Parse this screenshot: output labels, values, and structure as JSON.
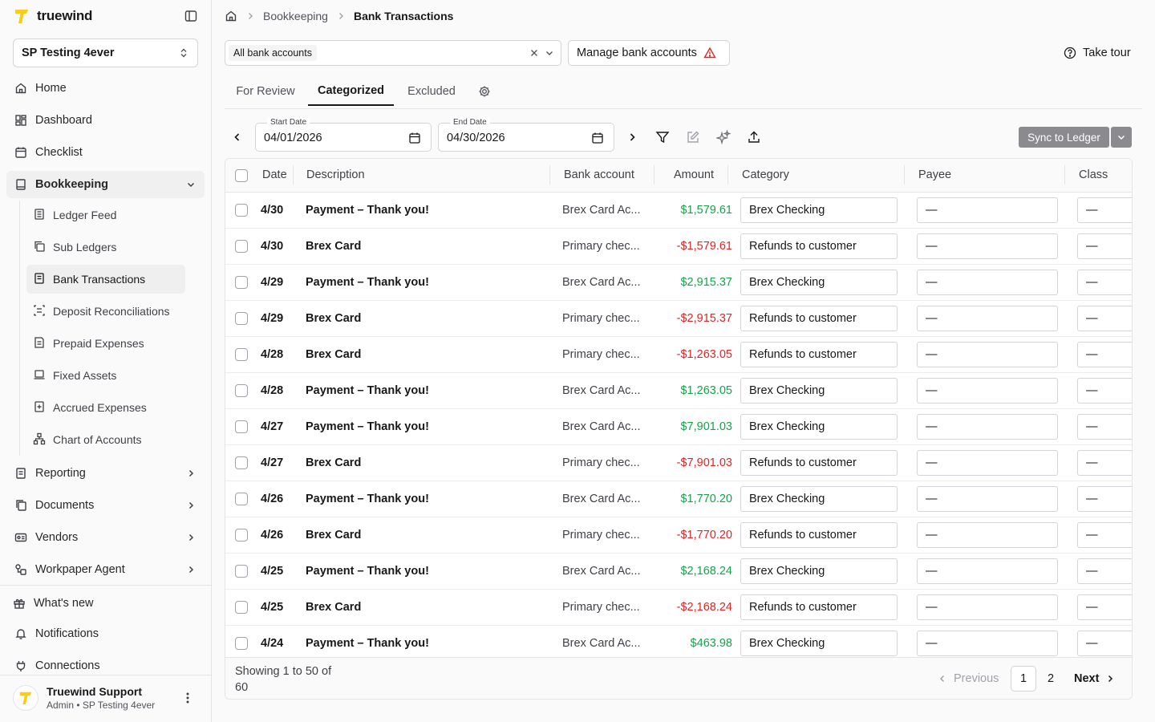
{
  "sidebar": {
    "brand": "truewind",
    "org": "SP Testing 4ever",
    "nav": {
      "home": "Home",
      "dashboard": "Dashboard",
      "checklist": "Checklist",
      "bookkeeping": "Bookkeeping",
      "reporting": "Reporting",
      "documents": "Documents",
      "vendors": "Vendors",
      "workpaper_agent": "Workpaper Agent",
      "whats_new": "What's new",
      "notifications": "Notifications",
      "connections": "Connections"
    },
    "sub": {
      "ledger_feed": "Ledger Feed",
      "sub_ledgers": "Sub Ledgers",
      "bank_transactions": "Bank Transactions",
      "deposit_reconciliations": "Deposit Reconciliations",
      "prepaid_expenses": "Prepaid Expenses",
      "fixed_assets": "Fixed Assets",
      "accrued_expenses": "Accrued Expenses",
      "chart_of_accounts": "Chart of Accounts"
    },
    "user": {
      "name": "Truewind Support",
      "role": "Admin • SP Testing 4ever"
    }
  },
  "breadcrumb": {
    "section": "Bookkeeping",
    "current": "Bank Transactions"
  },
  "toolbar": {
    "accounts_chip": "All bank accounts",
    "manage_label": "Manage bank accounts",
    "tour_label": "Take tour",
    "start_date_label": "Start Date",
    "start_date": "04/01/2026",
    "end_date_label": "End Date",
    "end_date": "04/30/2026",
    "sync_label": "Sync to Ledger"
  },
  "tabs": {
    "for_review": "For Review",
    "categorized": "Categorized",
    "excluded": "Excluded"
  },
  "table": {
    "headers": {
      "date": "Date",
      "description": "Description",
      "bank_account": "Bank account",
      "amount": "Amount",
      "category": "Category",
      "payee": "Payee",
      "class": "Class"
    },
    "rows": [
      {
        "date": "4/30",
        "description": "Payment – Thank you!",
        "bank": "Brex Card Ac...",
        "amount": "$1,579.61",
        "sign": "pos",
        "category": "Brex Checking",
        "payee": "—",
        "class": "—"
      },
      {
        "date": "4/30",
        "description": "Brex Card",
        "bank": "Primary chec...",
        "amount": "-$1,579.61",
        "sign": "neg",
        "category": "Refunds to customer",
        "payee": "—",
        "class": "—"
      },
      {
        "date": "4/29",
        "description": "Payment – Thank you!",
        "bank": "Brex Card Ac...",
        "amount": "$2,915.37",
        "sign": "pos",
        "category": "Brex Checking",
        "payee": "—",
        "class": "—"
      },
      {
        "date": "4/29",
        "description": "Brex Card",
        "bank": "Primary chec...",
        "amount": "-$2,915.37",
        "sign": "neg",
        "category": "Refunds to customer",
        "payee": "—",
        "class": "—"
      },
      {
        "date": "4/28",
        "description": "Brex Card",
        "bank": "Primary chec...",
        "amount": "-$1,263.05",
        "sign": "neg",
        "category": "Refunds to customer",
        "payee": "—",
        "class": "—"
      },
      {
        "date": "4/28",
        "description": "Payment – Thank you!",
        "bank": "Brex Card Ac...",
        "amount": "$1,263.05",
        "sign": "pos",
        "category": "Brex Checking",
        "payee": "—",
        "class": "—"
      },
      {
        "date": "4/27",
        "description": "Payment – Thank you!",
        "bank": "Brex Card Ac...",
        "amount": "$7,901.03",
        "sign": "pos",
        "category": "Brex Checking",
        "payee": "—",
        "class": "—"
      },
      {
        "date": "4/27",
        "description": "Brex Card",
        "bank": "Primary chec...",
        "amount": "-$7,901.03",
        "sign": "neg",
        "category": "Refunds to customer",
        "payee": "—",
        "class": "—"
      },
      {
        "date": "4/26",
        "description": "Payment – Thank you!",
        "bank": "Brex Card Ac...",
        "amount": "$1,770.20",
        "sign": "pos",
        "category": "Brex Checking",
        "payee": "—",
        "class": "—"
      },
      {
        "date": "4/26",
        "description": "Brex Card",
        "bank": "Primary chec...",
        "amount": "-$1,770.20",
        "sign": "neg",
        "category": "Refunds to customer",
        "payee": "—",
        "class": "—"
      },
      {
        "date": "4/25",
        "description": "Payment – Thank you!",
        "bank": "Brex Card Ac...",
        "amount": "$2,168.24",
        "sign": "pos",
        "category": "Brex Checking",
        "payee": "—",
        "class": "—"
      },
      {
        "date": "4/25",
        "description": "Brex Card",
        "bank": "Primary chec...",
        "amount": "-$2,168.24",
        "sign": "neg",
        "category": "Refunds to customer",
        "payee": "—",
        "class": "—"
      },
      {
        "date": "4/24",
        "description": "Payment – Thank you!",
        "bank": "Brex Card Ac...",
        "amount": "$463.98",
        "sign": "pos",
        "category": "Brex Checking",
        "payee": "—",
        "class": "—"
      }
    ]
  },
  "pagination": {
    "showing": "Showing 1 to 50 of 60",
    "previous": "Previous",
    "page1": "1",
    "page2": "2",
    "next": "Next"
  },
  "colors": {
    "brand_yellow": "#facc15",
    "positive": "#16a34a",
    "negative": "#dc2626",
    "sync_button": "#8b8b8f"
  }
}
